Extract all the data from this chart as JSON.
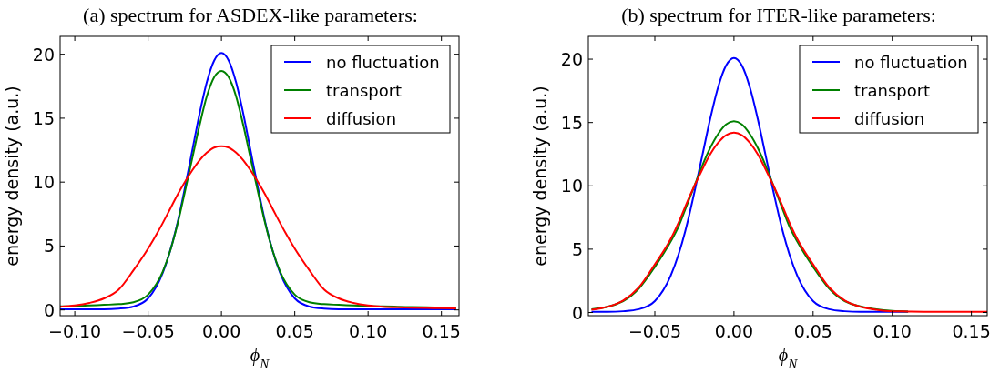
{
  "chart_data": [
    {
      "type": "line",
      "title": "(a) spectrum for ASDEX-like parameters:",
      "xlabel": "ϕ$_{N}$",
      "ylabel": "energy density (a.u.)",
      "legend": "top right",
      "grid": false,
      "x": [
        -0.11,
        -0.1,
        -0.09,
        -0.08,
        -0.07,
        -0.06,
        -0.05,
        -0.04,
        -0.035,
        -0.03,
        -0.025,
        -0.02,
        -0.015,
        -0.01,
        -0.005,
        0,
        0.005,
        0.01,
        0.015,
        0.02,
        0.025,
        0.03,
        0.035,
        0.04,
        0.05,
        0.06,
        0.07,
        0.08,
        0.09,
        0.1,
        0.11,
        0.12,
        0.13,
        0.14,
        0.15,
        0.16
      ],
      "xlim": [
        -0.11,
        0.162
      ],
      "ylim": [
        -0.45,
        21.4
      ],
      "xticks": [
        {
          "value": -0.1,
          "label": "−0.10"
        },
        {
          "value": -0.05,
          "label": "−0.05"
        },
        {
          "value": 0,
          "label": "0.00"
        },
        {
          "value": 0.05,
          "label": "0.05"
        },
        {
          "value": 0.1,
          "label": "0.10"
        },
        {
          "value": 0.15,
          "label": "0.15"
        }
      ],
      "yticks": [
        0,
        5,
        10,
        15,
        20
      ],
      "series": [
        {
          "name": "no fluctuation",
          "color": "#0000ff",
          "values": [
            0.05,
            0.05,
            0.05,
            0.05,
            0.1,
            0.26,
            0.9,
            2.9,
            null,
            6.8,
            9.5,
            12.4,
            15.3,
            17.8,
            19.5,
            20.1,
            19.5,
            17.8,
            15.3,
            12.4,
            9.5,
            6.8,
            4.6,
            2.9,
            0.9,
            0.26,
            0.1,
            0.05,
            0.05,
            0.05,
            0.05,
            0.05,
            0.05,
            0.05,
            0.05,
            0.05
          ]
        },
        {
          "name": "transport",
          "color": "#008000",
          "values": [
            0.28,
            0.3,
            0.35,
            0.4,
            0.45,
            0.6,
            1.2,
            3.0,
            4.6,
            6.7,
            9.2,
            11.8,
            14.4,
            16.7,
            18.2,
            18.7,
            18.2,
            16.7,
            14.4,
            11.8,
            9.2,
            6.7,
            4.6,
            3.0,
            1.2,
            0.6,
            0.45,
            0.4,
            0.35,
            0.3,
            0.28,
            0.25,
            0.22,
            0.2,
            0.18,
            0.15
          ]
        },
        {
          "name": "diffusion",
          "color": "#ff0000",
          "values": [
            0.25,
            0.35,
            0.55,
            0.9,
            1.6,
            3.1,
            4.8,
            6.8,
            7.9,
            9.0,
            10.0,
            10.9,
            11.7,
            12.3,
            12.7,
            12.8,
            12.7,
            12.3,
            11.7,
            10.9,
            10.0,
            9.0,
            7.9,
            6.8,
            4.8,
            3.1,
            1.6,
            0.9,
            0.55,
            0.35,
            0.25,
            0.2,
            0.17,
            0.15,
            0.13,
            0.12
          ]
        }
      ]
    },
    {
      "type": "line",
      "title": "(b) spectrum for ITER-like parameters:",
      "xlabel": "ϕ$_{N}$",
      "ylabel": "energy density (a.u.)",
      "legend": "top right",
      "grid": false,
      "x": [
        -0.09,
        -0.08,
        -0.07,
        -0.06,
        -0.05,
        -0.04,
        -0.035,
        -0.03,
        -0.025,
        -0.02,
        -0.015,
        -0.01,
        -0.005,
        0,
        0.005,
        0.01,
        0.015,
        0.02,
        0.025,
        0.03,
        0.035,
        0.04,
        0.05,
        0.06,
        0.07,
        0.08,
        0.09,
        0.1,
        0.11,
        0.12,
        0.13,
        0.14,
        0.15,
        0.16
      ],
      "xlim": [
        -0.092,
        0.16
      ],
      "ylim": [
        -0.25,
        21.8
      ],
      "xticks": [
        {
          "value": -0.05,
          "label": "−0.05"
        },
        {
          "value": 0,
          "label": "0.00"
        },
        {
          "value": 0.05,
          "label": "0.05"
        },
        {
          "value": 0.1,
          "label": "0.10"
        },
        {
          "value": 0.15,
          "label": "0.15"
        }
      ],
      "yticks": [
        0,
        5,
        10,
        15,
        20
      ],
      "series": [
        {
          "name": "no fluctuation",
          "color": "#0000ff",
          "values": [
            0.05,
            0.05,
            0.1,
            0.26,
            0.9,
            2.9,
            4.6,
            6.8,
            9.5,
            12.4,
            15.3,
            17.8,
            19.5,
            20.1,
            19.5,
            17.8,
            15.3,
            12.4,
            9.5,
            6.8,
            4.6,
            2.9,
            0.9,
            0.26,
            0.1,
            0.05,
            0.05,
            0.05,
            0.05,
            null,
            null,
            null,
            null,
            null
          ]
        },
        {
          "name": "transport",
          "color": "#008000",
          "values": [
            0.25,
            null,
            0.9,
            1.9,
            3.6,
            5.6,
            6.8,
            8.4,
            10.0,
            11.6,
            13.0,
            14.1,
            14.85,
            15.1,
            14.85,
            14.1,
            13.0,
            11.6,
            10.0,
            8.4,
            6.8,
            5.6,
            3.6,
            1.9,
            0.9,
            null,
            0.25,
            0.12,
            0.08,
            null,
            null,
            null,
            null,
            null
          ]
        },
        {
          "name": "diffusion",
          "color": "#ff0000",
          "values": [
            0.22,
            0.45,
            0.95,
            2.0,
            3.8,
            5.8,
            7.1,
            8.6,
            10.0,
            11.3,
            12.5,
            13.4,
            14.0,
            14.2,
            14.0,
            13.4,
            12.5,
            11.3,
            10.0,
            8.6,
            7.1,
            5.8,
            3.8,
            2.0,
            0.95,
            0.45,
            0.22,
            0.1,
            0.08,
            0.06,
            0.05,
            0.05,
            0.05,
            0.05
          ]
        }
      ]
    }
  ]
}
